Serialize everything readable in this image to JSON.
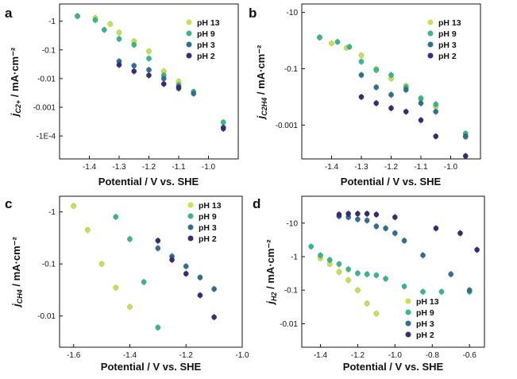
{
  "colors": {
    "pH 13": "#c5e34b",
    "pH 9": "#36b98a",
    "pH 3": "#2f6f90",
    "pH 2": "#3b2b72"
  },
  "chart_data": [
    {
      "panel": "a",
      "type": "scatter",
      "xlabel": "Potential / V vs. SHE",
      "ylabel_main": "j",
      "ylabel_sub": "C2+",
      "ylabel_unit": " / mA·cm⁻²",
      "xlim": [
        -1.5,
        -0.9
      ],
      "ylim_log": [
        -4.8,
        0.6
      ],
      "legend_position": "top-right",
      "x_ticks": [
        {
          "v": -1.4,
          "label": "-1.4"
        },
        {
          "v": -1.3,
          "label": "-1.3"
        },
        {
          "v": -1.2,
          "label": "-1.2"
        },
        {
          "v": -1.1,
          "label": "-1.1"
        },
        {
          "v": -1.0,
          "label": "-1.0"
        }
      ],
      "y_ticks": [
        {
          "v": 1,
          "label": "-1"
        },
        {
          "v": 0.1,
          "label": "-0.1"
        },
        {
          "v": 0.01,
          "label": "-0.01"
        },
        {
          "v": 0.001,
          "label": "-0.001"
        },
        {
          "v": 0.0001,
          "label": "-1E-4"
        }
      ],
      "series": [
        {
          "name": "pH 13",
          "points": [
            [
              -1.44,
              1.5
            ],
            [
              -1.38,
              1.3
            ],
            [
              -1.33,
              0.8
            ],
            [
              -1.3,
              0.4
            ],
            [
              -1.25,
              0.2
            ],
            [
              -1.2,
              0.09
            ],
            [
              -1.15,
              0.018
            ],
            [
              -1.1,
              0.008
            ]
          ]
        },
        {
          "name": "pH 9",
          "points": [
            [
              -1.44,
              1.5
            ],
            [
              -1.38,
              1.1
            ],
            [
              -1.35,
              0.5
            ],
            [
              -1.3,
              0.24
            ],
            [
              -1.25,
              0.15
            ],
            [
              -1.2,
              0.05
            ],
            [
              -1.15,
              0.013
            ],
            [
              -1.1,
              0.006
            ],
            [
              -1.05,
              0.0035
            ],
            [
              -0.95,
              0.0003
            ]
          ]
        },
        {
          "name": "pH 3",
          "points": [
            [
              -1.3,
              0.04
            ],
            [
              -1.25,
              0.028
            ],
            [
              -1.2,
              0.02
            ],
            [
              -1.15,
              0.01
            ],
            [
              -1.1,
              0.0045
            ],
            [
              -1.05,
              0.003
            ],
            [
              -0.95,
              0.0002
            ]
          ]
        },
        {
          "name": "pH 2",
          "points": [
            [
              -1.3,
              0.03
            ],
            [
              -1.25,
              0.018
            ],
            [
              -1.2,
              0.013
            ],
            [
              -1.15,
              0.0065
            ],
            [
              -1.1,
              0.005
            ],
            [
              -0.95,
              0.00018
            ]
          ]
        }
      ]
    },
    {
      "panel": "b",
      "type": "scatter",
      "xlabel": "Potential / V vs. SHE",
      "ylabel_main": "j",
      "ylabel_sub": "C2H4",
      "ylabel_unit": " / mA·cm⁻²",
      "xlim": [
        -1.5,
        -0.9
      ],
      "ylim_log": [
        -4.2,
        1.3
      ],
      "legend_position": "top-right",
      "x_ticks": [
        {
          "v": -1.4,
          "label": "-1.4"
        },
        {
          "v": -1.3,
          "label": "-1.3"
        },
        {
          "v": -1.2,
          "label": "-1.2"
        },
        {
          "v": -1.1,
          "label": "-1.1"
        },
        {
          "v": -1.0,
          "label": "-1.0"
        }
      ],
      "y_ticks": [
        {
          "v": 10,
          "label": "-10"
        },
        {
          "v": 0.1,
          "label": "-0.1"
        },
        {
          "v": 0.001,
          "label": "-0.001"
        }
      ],
      "series": [
        {
          "name": "pH 13",
          "points": [
            [
              -1.44,
              1.3
            ],
            [
              -1.4,
              0.8
            ],
            [
              -1.35,
              0.55
            ],
            [
              -1.3,
              0.3
            ],
            [
              -1.25,
              0.1
            ],
            [
              -1.2,
              0.045
            ],
            [
              -1.15,
              0.025
            ],
            [
              -1.1,
              0.0085
            ],
            [
              -1.05,
              0.0045
            ],
            [
              -0.95,
              0.00038
            ]
          ]
        },
        {
          "name": "pH 9",
          "points": [
            [
              -1.44,
              1.3
            ],
            [
              -1.38,
              0.9
            ],
            [
              -1.34,
              0.6
            ],
            [
              -1.3,
              0.18
            ],
            [
              -1.25,
              0.09
            ],
            [
              -1.2,
              0.06
            ],
            [
              -1.15,
              0.022
            ],
            [
              -1.1,
              0.009
            ],
            [
              -1.05,
              0.0055
            ],
            [
              -0.95,
              0.0005
            ]
          ]
        },
        {
          "name": "pH 3",
          "points": [
            [
              -1.3,
              0.06
            ],
            [
              -1.25,
              0.022
            ],
            [
              -1.2,
              0.012
            ],
            [
              -1.15,
              0.018
            ],
            [
              -1.1,
              0.006
            ],
            [
              -1.05,
              0.003
            ],
            [
              -0.95,
              0.0004
            ]
          ]
        },
        {
          "name": "pH 2",
          "points": [
            [
              -1.3,
              0.01
            ],
            [
              -1.25,
              0.006
            ],
            [
              -1.2,
              0.004
            ],
            [
              -1.15,
              0.003
            ],
            [
              -1.1,
              0.0015
            ],
            [
              -1.05,
              0.0004
            ],
            [
              -0.95,
              8e-05
            ]
          ]
        }
      ]
    },
    {
      "panel": "c",
      "type": "scatter",
      "xlabel": "Potential / V vs. SHE",
      "ylabel_main": "j",
      "ylabel_sub": "CH4",
      "ylabel_unit": " / mA·cm⁻²",
      "xlim": [
        -1.65,
        -1.0
      ],
      "ylim_log": [
        -2.6,
        0.3
      ],
      "legend_position": "top-right",
      "x_ticks": [
        {
          "v": -1.6,
          "label": "-1.6"
        },
        {
          "v": -1.4,
          "label": "-1.4"
        },
        {
          "v": -1.2,
          "label": "-1.2"
        },
        {
          "v": -1.0,
          "label": "-1.0"
        }
      ],
      "y_ticks": [
        {
          "v": 1,
          "label": "-1"
        },
        {
          "v": 0.1,
          "label": "-0.1"
        },
        {
          "v": 0.01,
          "label": "-0.01"
        }
      ],
      "series": [
        {
          "name": "pH 13",
          "points": [
            [
              -1.6,
              1.3
            ],
            [
              -1.55,
              0.45
            ],
            [
              -1.5,
              0.1
            ],
            [
              -1.45,
              0.035
            ],
            [
              -1.4,
              0.015
            ]
          ]
        },
        {
          "name": "pH 9",
          "points": [
            [
              -1.45,
              0.8
            ],
            [
              -1.4,
              0.3
            ],
            [
              -1.35,
              0.045
            ],
            [
              -1.3,
              0.006
            ]
          ]
        },
        {
          "name": "pH 3",
          "points": [
            [
              -1.3,
              0.2
            ],
            [
              -1.25,
              0.14
            ],
            [
              -1.2,
              0.09
            ],
            [
              -1.15,
              0.055
            ],
            [
              -1.1,
              0.033
            ]
          ]
        },
        {
          "name": "pH 2",
          "points": [
            [
              -1.3,
              0.28
            ],
            [
              -1.25,
              0.12
            ],
            [
              -1.2,
              0.065
            ],
            [
              -1.15,
              0.025
            ],
            [
              -1.1,
              0.0095
            ]
          ]
        }
      ]
    },
    {
      "panel": "d",
      "type": "scatter",
      "xlabel": "Potential / V vs. SHE",
      "ylabel_main": "j",
      "ylabel_sub": "H2",
      "ylabel_unit": " / mA·cm⁻²",
      "xlim": [
        -1.5,
        -0.52
      ],
      "ylim_log": [
        -2.7,
        1.8
      ],
      "legend_position": "bottom-right",
      "x_ticks": [
        {
          "v": -1.4,
          "label": "-1.4"
        },
        {
          "v": -1.2,
          "label": "-1.2"
        },
        {
          "v": -1.0,
          "label": "-1.0"
        },
        {
          "v": -0.8,
          "label": "-0.8"
        },
        {
          "v": -0.6,
          "label": "-0.6"
        }
      ],
      "y_ticks": [
        {
          "v": 10,
          "label": "-10"
        },
        {
          "v": 1,
          "label": "-1"
        },
        {
          "v": 0.1,
          "label": "-0.1"
        },
        {
          "v": 0.01,
          "label": "-0.01"
        }
      ],
      "series": [
        {
          "name": "pH 13",
          "points": [
            [
              -1.4,
              0.9
            ],
            [
              -1.35,
              0.6
            ],
            [
              -1.3,
              0.35
            ],
            [
              -1.25,
              0.2
            ],
            [
              -1.2,
              0.1
            ],
            [
              -1.15,
              0.04
            ],
            [
              -1.1,
              0.02
            ]
          ]
        },
        {
          "name": "pH 9",
          "points": [
            [
              -1.45,
              2.0
            ],
            [
              -1.4,
              1.1
            ],
            [
              -1.35,
              0.8
            ],
            [
              -1.3,
              0.6
            ],
            [
              -1.25,
              0.42
            ],
            [
              -1.2,
              0.32
            ],
            [
              -1.15,
              0.3
            ],
            [
              -1.1,
              0.28
            ],
            [
              -1.05,
              0.22
            ],
            [
              -0.95,
              0.13
            ],
            [
              -0.85,
              0.09
            ],
            [
              -0.75,
              0.09
            ],
            [
              -0.6,
              0.09
            ]
          ]
        },
        {
          "name": "pH 3",
          "points": [
            [
              -1.3,
              16
            ],
            [
              -1.25,
              15
            ],
            [
              -1.2,
              13
            ],
            [
              -1.15,
              12
            ],
            [
              -1.1,
              8
            ],
            [
              -1.05,
              7
            ],
            [
              -1.0,
              5
            ],
            [
              -0.95,
              3
            ],
            [
              -0.85,
              1.1
            ],
            [
              -0.7,
              0.3
            ],
            [
              -0.6,
              0.1
            ]
          ]
        },
        {
          "name": "pH 2",
          "points": [
            [
              -1.3,
              18
            ],
            [
              -1.25,
              19
            ],
            [
              -1.2,
              19
            ],
            [
              -1.15,
              19
            ],
            [
              -1.1,
              18
            ],
            [
              -1.0,
              15
            ],
            [
              -0.78,
              7
            ],
            [
              -0.65,
              5
            ],
            [
              -0.56,
              1.6
            ]
          ]
        }
      ]
    }
  ]
}
